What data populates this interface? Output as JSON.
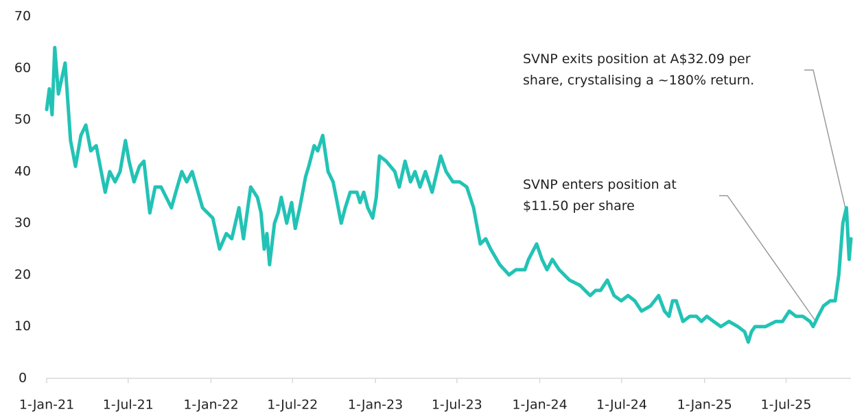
{
  "chart_data": {
    "type": "line",
    "color": "#22c3b5",
    "x": [
      "2021-01-01",
      "2021-01-07",
      "2021-01-13",
      "2021-01-19",
      "2021-01-27",
      "2021-02-11",
      "2021-02-23",
      "2021-03-06",
      "2021-03-18",
      "2021-03-29",
      "2021-04-09",
      "2021-04-21",
      "2021-05-11",
      "2021-05-21",
      "2021-06-02",
      "2021-06-13",
      "2021-06-25",
      "2021-07-03",
      "2021-07-14",
      "2021-07-26",
      "2021-08-05",
      "2021-08-18",
      "2021-08-30",
      "2021-09-12",
      "2021-10-05",
      "2021-10-18",
      "2021-10-28",
      "2021-11-08",
      "2021-11-20",
      "2021-12-13",
      "2022-01-05",
      "2022-01-20",
      "2022-02-04",
      "2022-02-16",
      "2022-02-24",
      "2022-03-04",
      "2022-03-14",
      "2022-03-30",
      "2022-04-14",
      "2022-04-22",
      "2022-04-29",
      "2022-05-05",
      "2022-05-11",
      "2022-05-22",
      "2022-05-30",
      "2022-06-06",
      "2022-06-18",
      "2022-06-29",
      "2022-07-07",
      "2022-07-17",
      "2022-07-30",
      "2022-08-06",
      "2022-08-18",
      "2022-08-26",
      "2022-09-06",
      "2022-09-18",
      "2022-09-29",
      "2022-10-06",
      "2022-10-17",
      "2022-10-26",
      "2022-11-06",
      "2022-11-21",
      "2022-11-28",
      "2022-12-06",
      "2022-12-15",
      "2022-12-26",
      "2023-01-03",
      "2023-01-10",
      "2023-01-25",
      "2023-02-13",
      "2023-02-23",
      "2023-03-08",
      "2023-03-20",
      "2023-03-30",
      "2023-04-10",
      "2023-04-22",
      "2023-05-07",
      "2023-05-26",
      "2023-06-07",
      "2023-06-22",
      "2023-07-07",
      "2023-07-23",
      "2023-08-07",
      "2023-08-22",
      "2023-09-03",
      "2023-09-14",
      "2023-10-04",
      "2023-10-25",
      "2023-11-09",
      "2023-11-29",
      "2023-12-07",
      "2023-12-25",
      "2024-01-06",
      "2024-01-17",
      "2024-01-29",
      "2024-02-13",
      "2024-03-07",
      "2024-03-30",
      "2024-04-22",
      "2024-05-04",
      "2024-05-15",
      "2024-05-30",
      "2024-06-14",
      "2024-06-30",
      "2024-07-15",
      "2024-07-30",
      "2024-08-14",
      "2024-09-03",
      "2024-09-21",
      "2024-10-04",
      "2024-10-14",
      "2024-10-22",
      "2024-10-30",
      "2024-11-14",
      "2024-11-29",
      "2024-12-14",
      "2024-12-25",
      "2025-01-06",
      "2025-01-21",
      "2025-02-06",
      "2025-02-24",
      "2025-03-16",
      "2025-03-31",
      "2025-04-08",
      "2025-04-15",
      "2025-04-23",
      "2025-05-16",
      "2025-06-08",
      "2025-06-23",
      "2025-07-08",
      "2025-07-23",
      "2025-08-07",
      "2025-08-23",
      "2025-08-30",
      "2025-09-10",
      "2025-09-22",
      "2025-10-07",
      "2025-10-18",
      "2025-10-26",
      "2025-11-04",
      "2025-11-12",
      "2025-11-18",
      "2025-11-22"
    ],
    "values": [
      52,
      56,
      51,
      64,
      55,
      61,
      46,
      41,
      47,
      49,
      44,
      45,
      36,
      40,
      38,
      40,
      46,
      42,
      38,
      41,
      42,
      32,
      37,
      37,
      33,
      37,
      40,
      38,
      40,
      33,
      31,
      25,
      28,
      27,
      30,
      33,
      27,
      37,
      35,
      32,
      25,
      28,
      22,
      30,
      32,
      35,
      30,
      34,
      29,
      33,
      39,
      41,
      45,
      44,
      47,
      40,
      38,
      35,
      30,
      33,
      36,
      36,
      34,
      36,
      33,
      31,
      35,
      43,
      42,
      40,
      37,
      42,
      38,
      40,
      37,
      40,
      36,
      43,
      40,
      38,
      38,
      37,
      33,
      26,
      27,
      25,
      22,
      20,
      21,
      21,
      23,
      26,
      23,
      21,
      23,
      21,
      19,
      18,
      16,
      17,
      17,
      19,
      16,
      15,
      16,
      15,
      13,
      14,
      16,
      13,
      12,
      15,
      15,
      11,
      12,
      12,
      11,
      12,
      11,
      10,
      11,
      10,
      9,
      7,
      9,
      10,
      10,
      11,
      11,
      13,
      12,
      12,
      11,
      10,
      12,
      14,
      15,
      15,
      20,
      30,
      33,
      23,
      27
    ],
    "xlim": [
      "2021-01-01",
      "2025-11-22"
    ],
    "xticks": [
      {
        "value": "2021-01-01",
        "label": "1-Jan-21"
      },
      {
        "value": "2021-07-01",
        "label": "1-Jul-21"
      },
      {
        "value": "2022-01-01",
        "label": "1-Jan-22"
      },
      {
        "value": "2022-07-01",
        "label": "1-Jul-22"
      },
      {
        "value": "2023-01-01",
        "label": "1-Jan-23"
      },
      {
        "value": "2023-07-01",
        "label": "1-Jul-23"
      },
      {
        "value": "2024-01-01",
        "label": "1-Jan-24"
      },
      {
        "value": "2024-07-01",
        "label": "1-Jul-24"
      },
      {
        "value": "2025-01-01",
        "label": "1-Jan-25"
      },
      {
        "value": "2025-07-01",
        "label": "1-Jul-25"
      }
    ],
    "ylim": [
      0,
      70
    ],
    "yticks": [
      0,
      10,
      20,
      30,
      40,
      50,
      60,
      70
    ],
    "grid": false,
    "annotations": [
      {
        "lines": [
          "SVNP exits position at A$32.09 per",
          "share, crystalising a ~180% return."
        ]
      },
      {
        "lines": [
          "SVNP enters position at",
          "$11.50 per share"
        ]
      }
    ]
  }
}
